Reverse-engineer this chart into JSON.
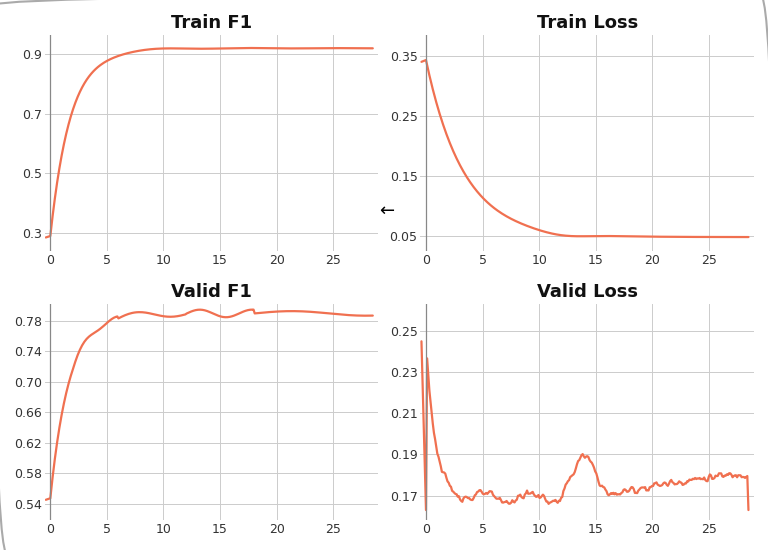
{
  "line_color": "#f07050",
  "vline_color": "#888888",
  "subplot_bg": "#ffffff",
  "fig_bg": "#ffffff",
  "border_color": "#aaaaaa",
  "grid_color": "#cccccc",
  "title_color": "#111111",
  "tick_color": "#333333",
  "train_f1_title": "Train F1",
  "train_f1_yticks": [
    0.3,
    0.5,
    0.7,
    0.9
  ],
  "train_f1_ylim": [
    0.24,
    0.965
  ],
  "train_loss_title": "Train Loss",
  "train_loss_yticks": [
    0.05,
    0.15,
    0.25,
    0.35
  ],
  "train_loss_ylim": [
    0.025,
    0.385
  ],
  "valid_f1_title": "Valid F1",
  "valid_f1_yticks": [
    0.54,
    0.58,
    0.62,
    0.66,
    0.7,
    0.74,
    0.78
  ],
  "valid_f1_ylim": [
    0.518,
    0.802
  ],
  "valid_loss_title": "Valid Loss",
  "valid_loss_yticks": [
    0.17,
    0.19,
    0.21,
    0.23,
    0.25
  ],
  "valid_loss_ylim": [
    0.158,
    0.263
  ],
  "xlim": [
    -0.5,
    29.0
  ],
  "xticks": [
    0,
    5,
    10,
    15,
    20,
    25
  ],
  "vline_x": 0.0,
  "arrow_text": "←",
  "title_fontsize": 13,
  "tick_fontsize": 9
}
